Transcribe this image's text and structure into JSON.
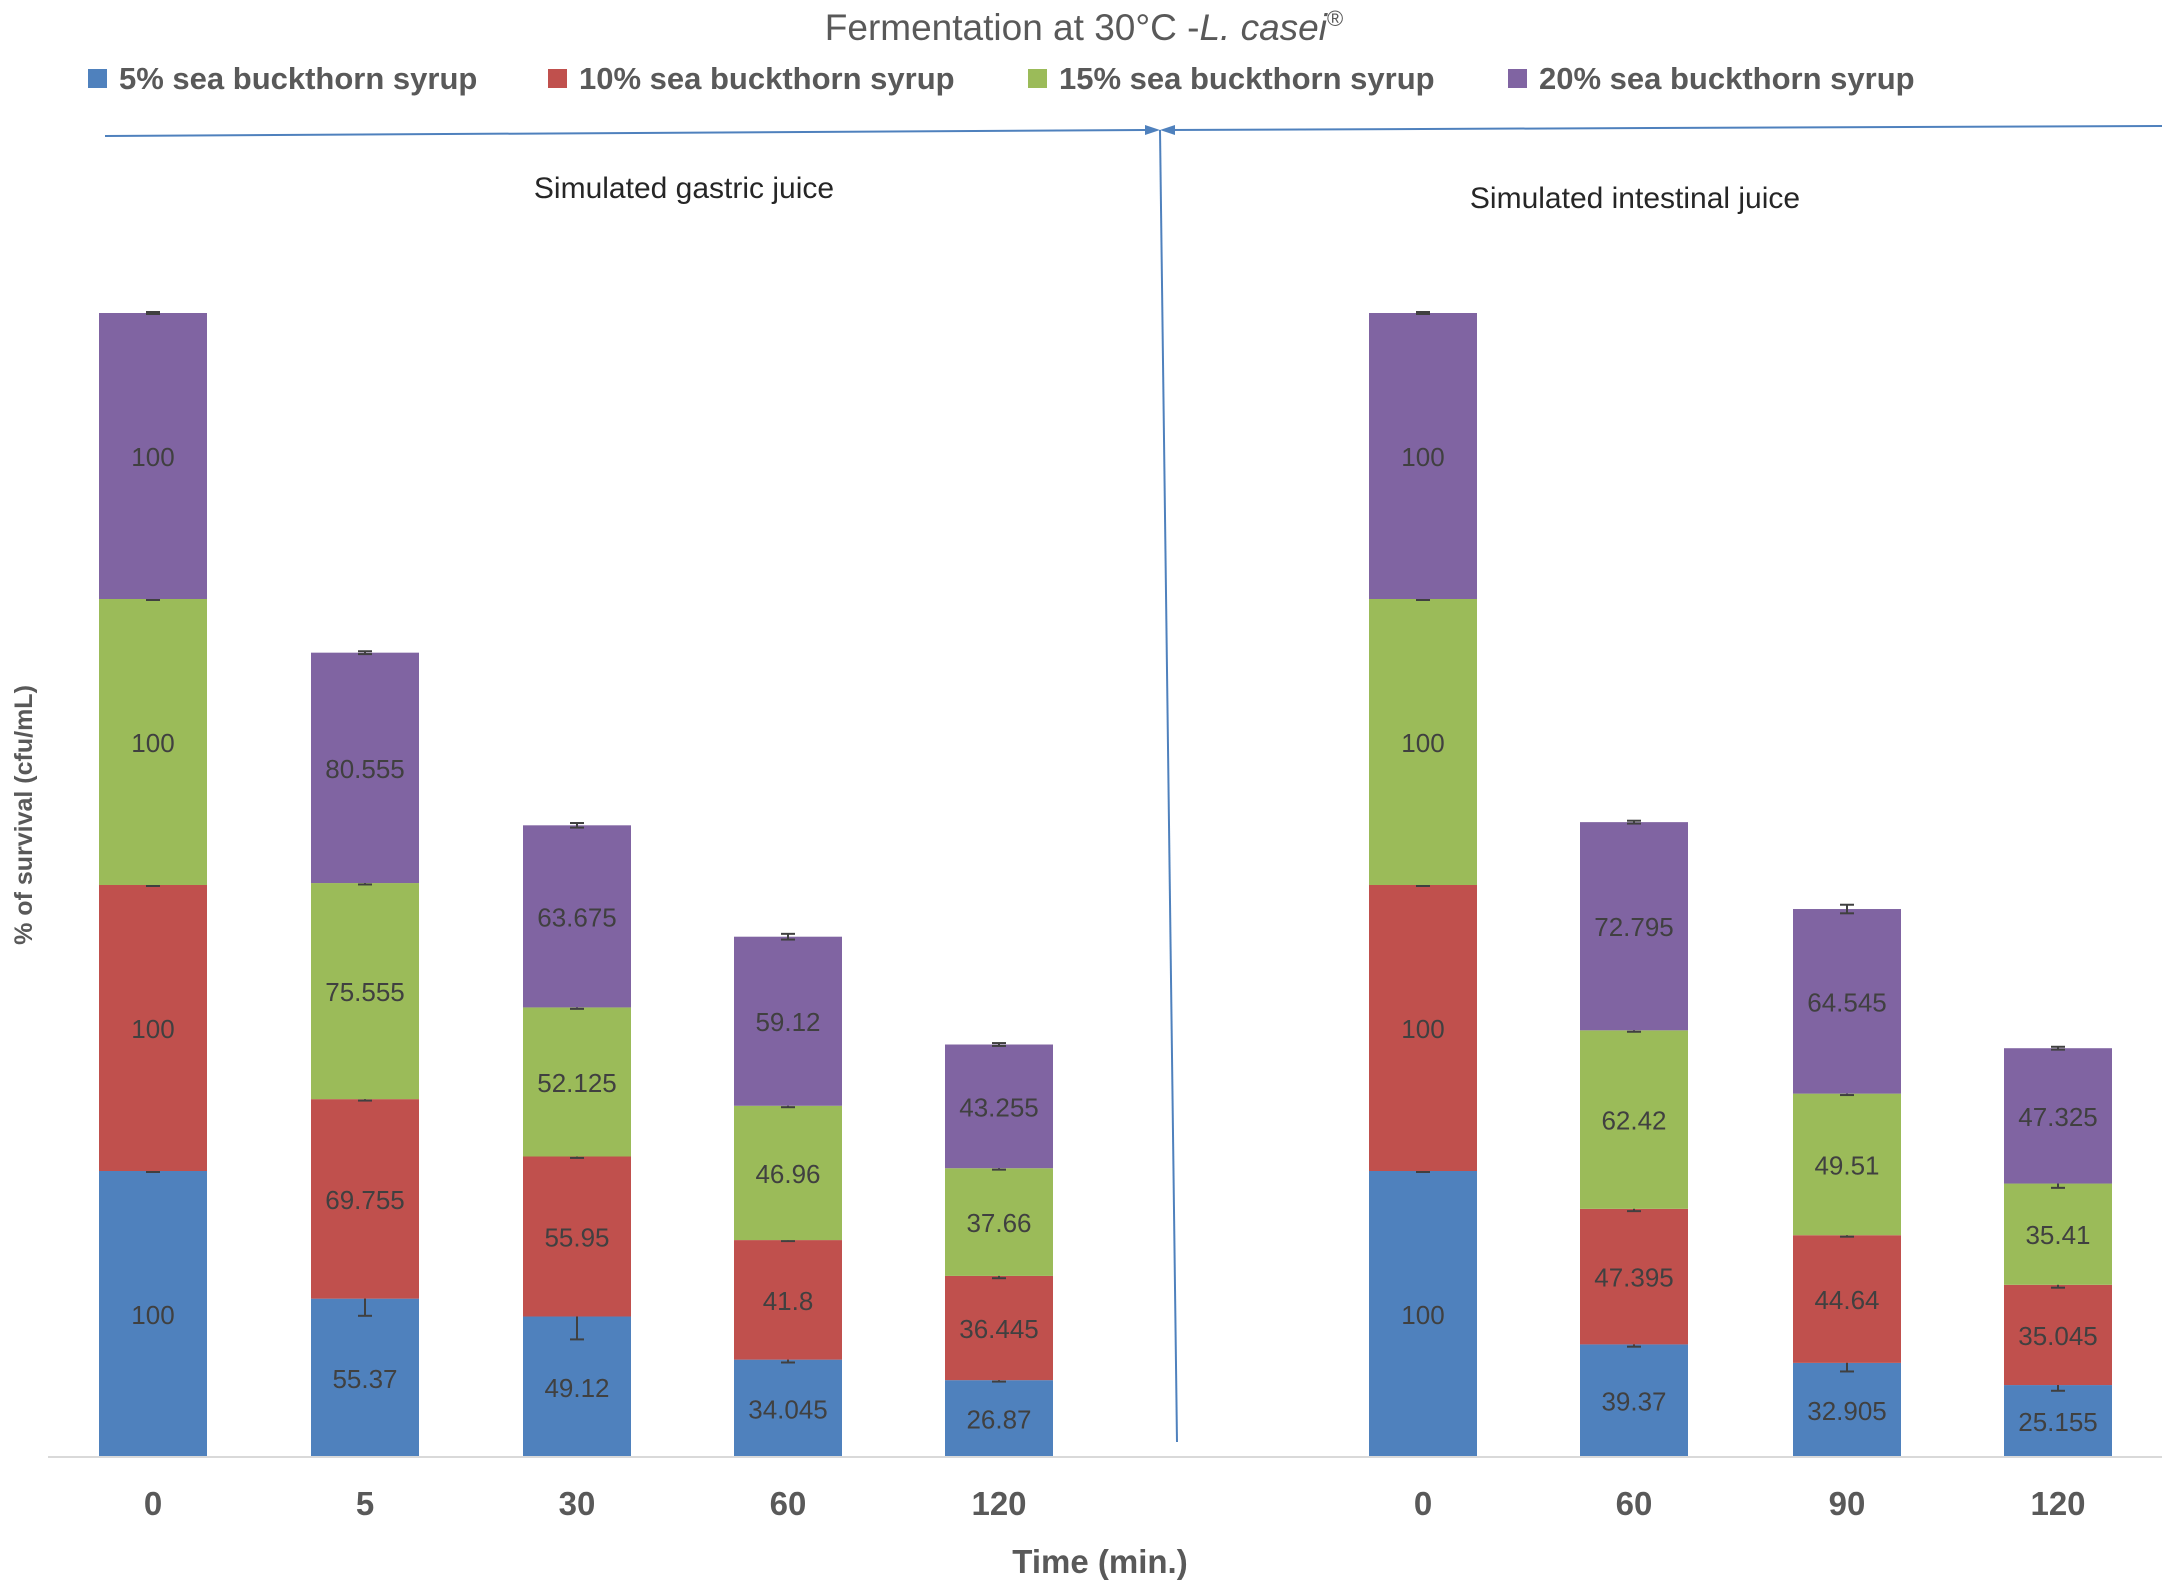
{
  "chart_data": {
    "type": "bar",
    "stacked": true,
    "title": "Fermentation at 30°C -",
    "title_italic": "L. casei",
    "title_sup": "®",
    "xlabel": "Time (min.)",
    "ylabel": "% of survival (cfu/mL)",
    "legend_position": "top",
    "legend": [
      {
        "name": "5% sea buckthorn syrup",
        "color": "#4f81bd"
      },
      {
        "name": "10% sea buckthorn syrup",
        "color": "#c0504d"
      },
      {
        "name": "15% sea buckthorn syrup",
        "color": "#9bbb59"
      },
      {
        "name": "20% sea buckthorn syrup",
        "color": "#8064a2"
      }
    ],
    "groups": [
      {
        "label": "Simulated gastric juice",
        "categories": [
          "0",
          "5",
          "30",
          "60",
          "120"
        ],
        "series": [
          {
            "name": "5% sea buckthorn syrup",
            "values": [
              100,
              55.37,
              49.12,
              34.045,
              26.87
            ],
            "errors": [
              0,
              6,
              8,
              1,
              0.5
            ]
          },
          {
            "name": "10% sea buckthorn syrup",
            "values": [
              100,
              69.755,
              55.95,
              41.8,
              36.445
            ],
            "errors": [
              0,
              0.5,
              0.5,
              0,
              0.8
            ]
          },
          {
            "name": "15% sea buckthorn syrup",
            "values": [
              100,
              75.555,
              52.125,
              46.96,
              37.66
            ],
            "errors": [
              0,
              0.5,
              0.5,
              0.5,
              0.5
            ]
          },
          {
            "name": "20% sea buckthorn syrup",
            "values": [
              100,
              80.555,
              63.675,
              59.12,
              43.255
            ],
            "errors": [
              0,
              0.5,
              0.8,
              1,
              0.5
            ]
          }
        ]
      },
      {
        "label": "Simulated intestinal juice",
        "categories": [
          "0",
          "60",
          "90",
          "120"
        ],
        "series": [
          {
            "name": "5% sea buckthorn syrup",
            "values": [
              100,
              39.37,
              32.905,
              25.155
            ],
            "errors": [
              0,
              0.8,
              3,
              2
            ]
          },
          {
            "name": "10% sea buckthorn syrup",
            "values": [
              100,
              47.395,
              44.64,
              35.045
            ],
            "errors": [
              0,
              0.8,
              0.5,
              1
            ]
          },
          {
            "name": "15% sea buckthorn syrup",
            "values": [
              100,
              62.42,
              49.51,
              35.41
            ],
            "errors": [
              0,
              0.5,
              0.5,
              1.5
            ]
          },
          {
            "name": "20% sea buckthorn syrup",
            "values": [
              100,
              72.795,
              64.545,
              47.325
            ],
            "errors": [
              0,
              0.5,
              1.5,
              0.5
            ]
          }
        ]
      }
    ],
    "ylim": [
      0,
      400
    ],
    "grid": false
  }
}
